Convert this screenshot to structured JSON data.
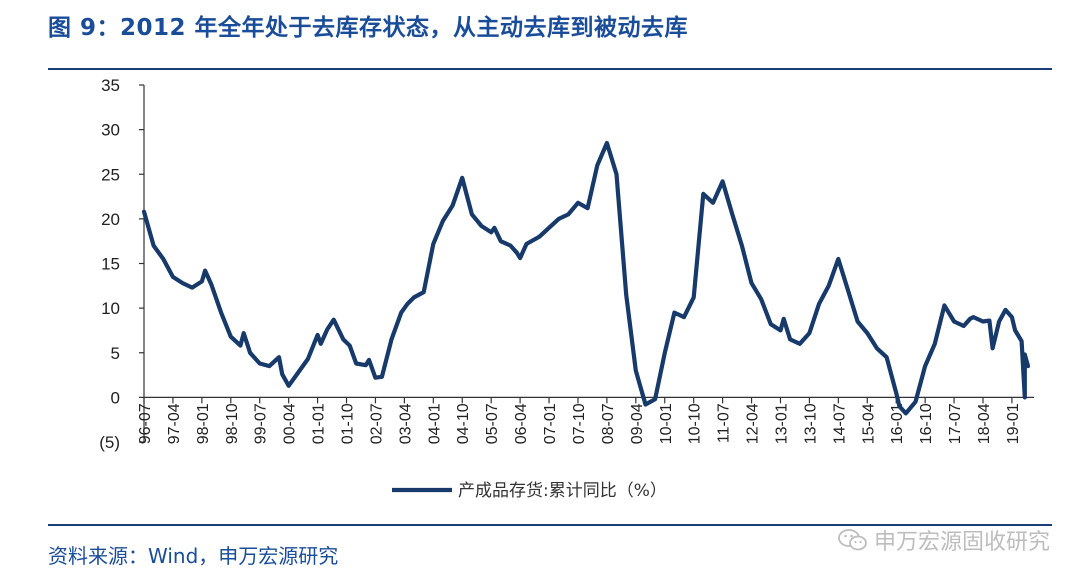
{
  "header": {
    "title": "图 9：2012 年全年处于去库存状态，从主动去库到被动去库"
  },
  "footer": {
    "source": "资料来源：Wind，申万宏源研究",
    "watermark": "申万宏源固收研究"
  },
  "colors": {
    "title": "#1a4d99",
    "line": "#173a6b",
    "rule": "#1a3e7a",
    "negative_label": "#cc0000"
  },
  "icons": {
    "watermark": "wechat-icon"
  },
  "chart_data": {
    "type": "line",
    "title": "",
    "ylim": [
      -5,
      35
    ],
    "yticks": [
      35,
      30,
      25,
      20,
      15,
      10,
      5,
      0,
      -5
    ],
    "ytick_labels": [
      "35",
      "30",
      "25",
      "20",
      "15",
      "10",
      "5",
      "0",
      "(5)"
    ],
    "xticks": [
      "96-07",
      "97-04",
      "98-01",
      "98-10",
      "99-07",
      "00-04",
      "01-01",
      "01-10",
      "02-07",
      "03-04",
      "04-01",
      "04-10",
      "05-07",
      "06-04",
      "07-01",
      "07-10",
      "08-07",
      "09-04",
      "10-01",
      "10-10",
      "11-07",
      "12-04",
      "13-01",
      "13-10",
      "14-07",
      "15-04",
      "16-01",
      "16-10",
      "17-07",
      "18-04",
      "19-01"
    ],
    "x_start": "1996-07",
    "x_end": "2019-06",
    "grid": false,
    "legend_position": "bottom-center",
    "series": [
      {
        "name": "产成品存货:累计同比（%）",
        "points": [
          [
            "1996-07",
            20.8
          ],
          [
            "1996-10",
            17.0
          ],
          [
            "1997-01",
            15.5
          ],
          [
            "1997-04",
            13.5
          ],
          [
            "1997-07",
            12.8
          ],
          [
            "1997-10",
            12.3
          ],
          [
            "1998-01",
            13.0
          ],
          [
            "1998-02",
            14.2
          ],
          [
            "1998-04",
            12.6
          ],
          [
            "1998-07",
            9.5
          ],
          [
            "1998-10",
            6.8
          ],
          [
            "1999-01",
            5.8
          ],
          [
            "1999-02",
            7.2
          ],
          [
            "1999-04",
            5.0
          ],
          [
            "1999-07",
            3.8
          ],
          [
            "1999-10",
            3.5
          ],
          [
            "2000-01",
            4.5
          ],
          [
            "2000-02",
            2.6
          ],
          [
            "2000-04",
            1.3
          ],
          [
            "2000-07",
            2.8
          ],
          [
            "2000-10",
            4.3
          ],
          [
            "2001-01",
            7.0
          ],
          [
            "2001-02",
            6.0
          ],
          [
            "2001-04",
            7.6
          ],
          [
            "2001-06",
            8.7
          ],
          [
            "2001-09",
            6.5
          ],
          [
            "2001-11",
            5.8
          ],
          [
            "2002-01",
            3.8
          ],
          [
            "2002-04",
            3.6
          ],
          [
            "2002-05",
            4.2
          ],
          [
            "2002-07",
            2.2
          ],
          [
            "2002-09",
            2.3
          ],
          [
            "2002-12",
            6.5
          ],
          [
            "2003-03",
            9.5
          ],
          [
            "2003-05",
            10.5
          ],
          [
            "2003-07",
            11.2
          ],
          [
            "2003-10",
            11.8
          ],
          [
            "2004-01",
            17.2
          ],
          [
            "2004-04",
            19.8
          ],
          [
            "2004-07",
            21.5
          ],
          [
            "2004-10",
            24.6
          ],
          [
            "2005-01",
            20.5
          ],
          [
            "2005-04",
            19.2
          ],
          [
            "2005-07",
            18.5
          ],
          [
            "2005-08",
            19.0
          ],
          [
            "2005-10",
            17.5
          ],
          [
            "2006-01",
            17.0
          ],
          [
            "2006-03",
            16.2
          ],
          [
            "2006-04",
            15.6
          ],
          [
            "2006-06",
            17.2
          ],
          [
            "2006-10",
            18.0
          ],
          [
            "2007-01",
            19.0
          ],
          [
            "2007-04",
            20.0
          ],
          [
            "2007-07",
            20.5
          ],
          [
            "2007-10",
            21.8
          ],
          [
            "2008-01",
            21.2
          ],
          [
            "2008-04",
            26.0
          ],
          [
            "2008-07",
            28.5
          ],
          [
            "2008-10",
            25.0
          ],
          [
            "2009-01",
            11.5
          ],
          [
            "2009-04",
            3.0
          ],
          [
            "2009-07",
            -0.8
          ],
          [
            "2009-10",
            -0.2
          ],
          [
            "2010-01",
            5.0
          ],
          [
            "2010-04",
            9.5
          ],
          [
            "2010-07",
            9.0
          ],
          [
            "2010-10",
            11.2
          ],
          [
            "2011-01",
            22.8
          ],
          [
            "2011-04",
            21.8
          ],
          [
            "2011-07",
            24.2
          ],
          [
            "2011-10",
            20.5
          ],
          [
            "2012-01",
            17.0
          ],
          [
            "2012-04",
            12.8
          ],
          [
            "2012-07",
            11.0
          ],
          [
            "2012-10",
            8.2
          ],
          [
            "2013-01",
            7.5
          ],
          [
            "2013-02",
            8.8
          ],
          [
            "2013-04",
            6.5
          ],
          [
            "2013-07",
            6.0
          ],
          [
            "2013-10",
            7.2
          ],
          [
            "2014-01",
            10.5
          ],
          [
            "2014-04",
            12.5
          ],
          [
            "2014-07",
            15.5
          ],
          [
            "2014-10",
            12.0
          ],
          [
            "2015-01",
            8.5
          ],
          [
            "2015-04",
            7.2
          ],
          [
            "2015-07",
            5.5
          ],
          [
            "2015-10",
            4.5
          ],
          [
            "2016-01",
            0.5
          ],
          [
            "2016-02",
            -1.0
          ],
          [
            "2016-04",
            -1.8
          ],
          [
            "2016-07",
            -0.5
          ],
          [
            "2016-10",
            3.5
          ],
          [
            "2017-01",
            6.0
          ],
          [
            "2017-04",
            10.3
          ],
          [
            "2017-07",
            8.5
          ],
          [
            "2017-10",
            8.0
          ],
          [
            "2017-12",
            8.8
          ],
          [
            "2018-01",
            9.0
          ],
          [
            "2018-04",
            8.5
          ],
          [
            "2018-06",
            8.6
          ],
          [
            "2018-07",
            5.5
          ],
          [
            "2018-09",
            8.5
          ],
          [
            "2018-11",
            9.8
          ],
          [
            "2019-01",
            9.0
          ],
          [
            "2019-02",
            7.5
          ],
          [
            "2019-04",
            6.3
          ],
          [
            "2019-05",
            0.0
          ],
          [
            "2019-05",
            4.8
          ],
          [
            "2019-06",
            3.5
          ]
        ]
      }
    ]
  }
}
